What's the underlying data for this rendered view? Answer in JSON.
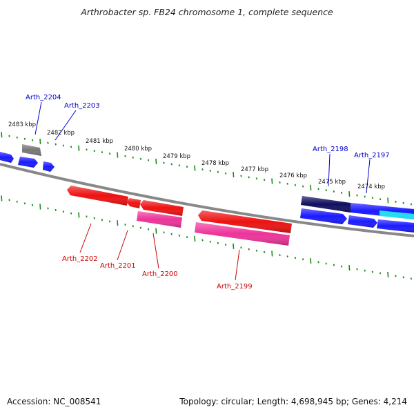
{
  "title": "Arthrobacter sp. FB24 chromosome 1, complete sequence",
  "footer": {
    "accession": "Accession: NC_008541",
    "summary": "Topology: circular; Length: 4,698,945 bp; Genes: 4,214"
  },
  "scale_labels": [
    "2483 kbp",
    "2482 kbp",
    "2481 kbp",
    "2480 kbp",
    "2479 kbp",
    "2478 kbp",
    "2477 kbp",
    "2476 kbp",
    "2475 kbp",
    "2474 kbp"
  ],
  "colors": {
    "forward_gene": "#1a1aff",
    "forward_label": "#0000cc",
    "reverse_gene": "#ee1111",
    "reverse_rna": "#ee3399",
    "reverse_label": "#cc0000",
    "backbone": "#888888",
    "tick": "#1a8a1a",
    "dark_gene": "#101060",
    "gray_gene": "#777777",
    "cyan_gene": "#22ddee"
  },
  "gene_labels": {
    "forward": [
      "Arth_2204",
      "Arth_2203",
      "Arth_2198",
      "Arth_2197"
    ],
    "reverse": [
      "Arth_2202",
      "Arth_2201",
      "Arth_2200",
      "Arth_2199"
    ]
  }
}
